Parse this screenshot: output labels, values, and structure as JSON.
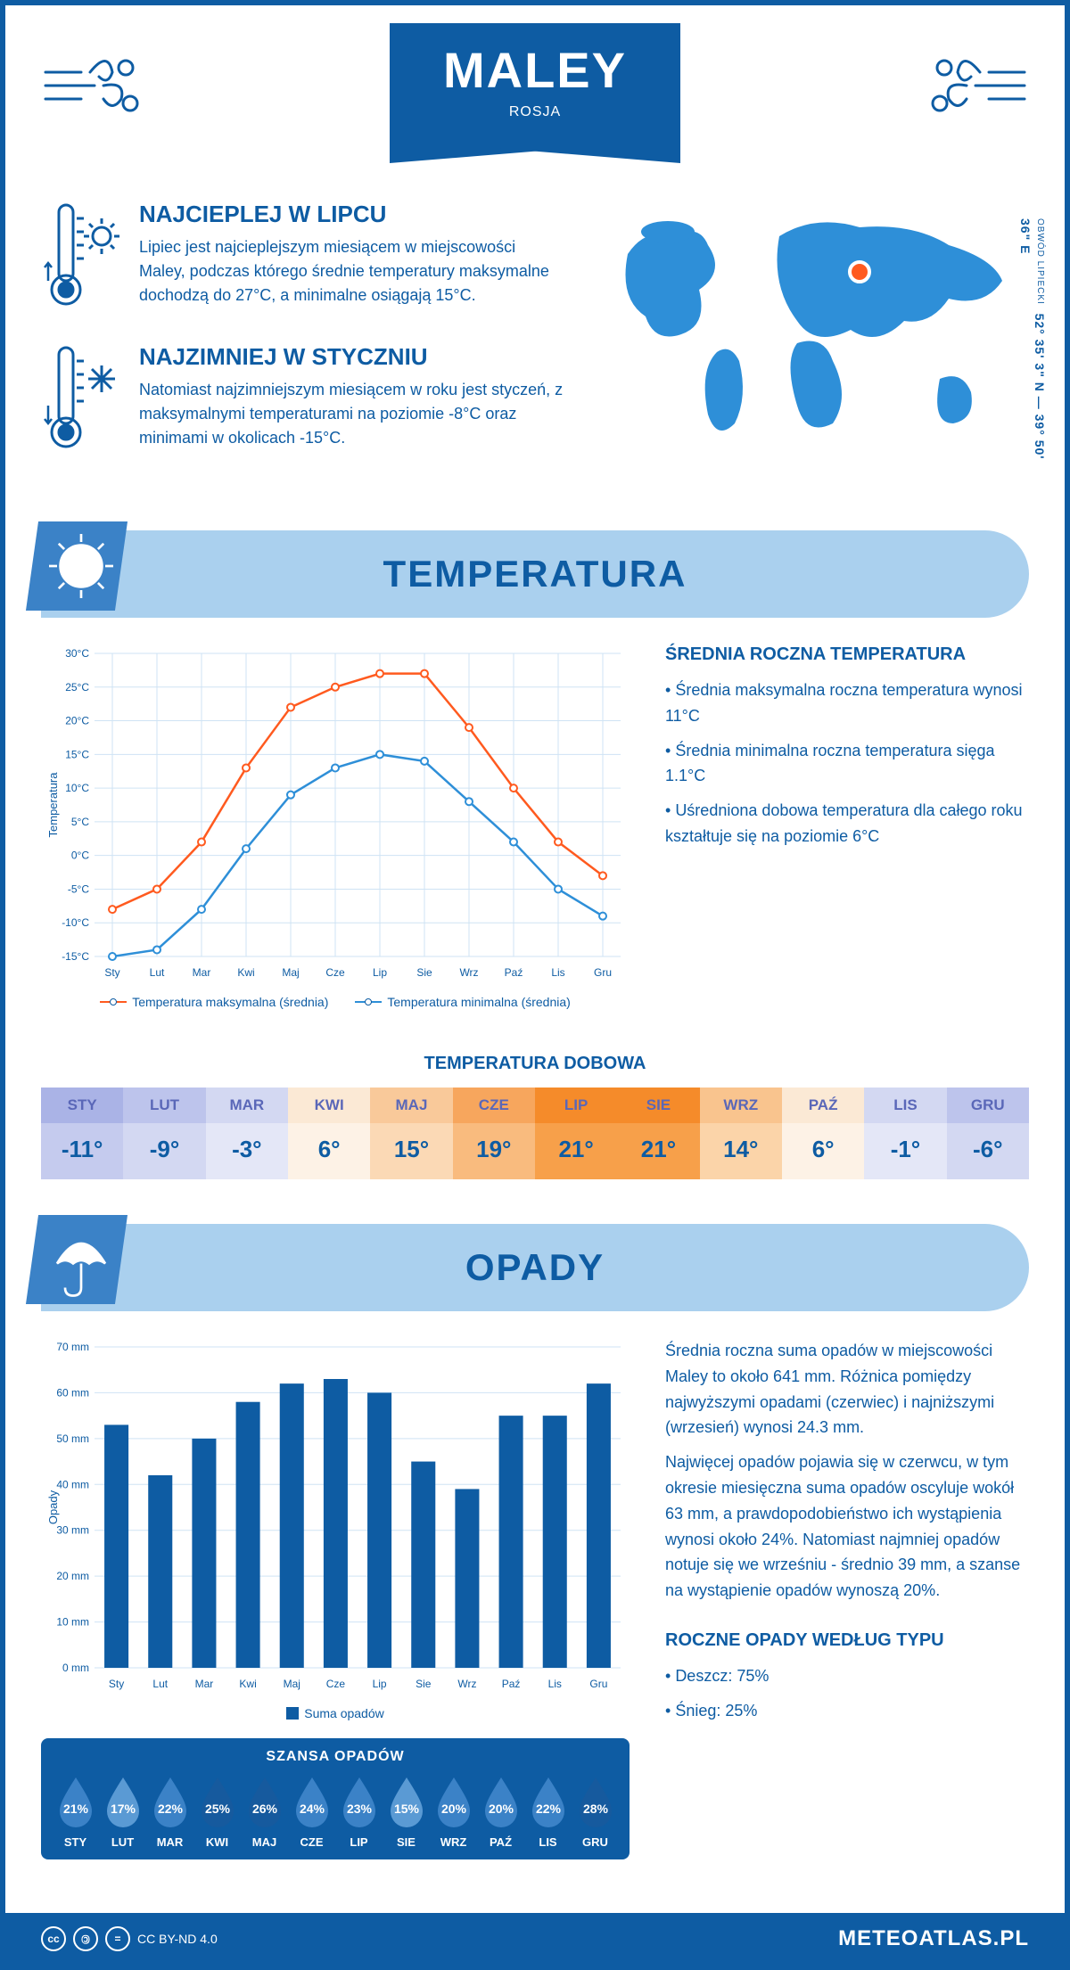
{
  "header": {
    "title": "MALEY",
    "country": "ROSJA",
    "wind_icon_color": "#0e5ca3"
  },
  "coords": {
    "lat": "52° 35' 3\" N",
    "sep": "—",
    "lon": "39° 50' 36\" E",
    "region": "OBWÓD LIPIECKI"
  },
  "intro": {
    "hot": {
      "title": "NAJCIEPLEJ W LIPCU",
      "text": "Lipiec jest najcieplejszym miesiącem w miejscowości Maley, podczas którego średnie temperatury maksymalne dochodzą do 27°C, a minimalne osiągają 15°C."
    },
    "cold": {
      "title": "NAJZIMNIEJ W STYCZNIU",
      "text": "Natomiast najzimniejszym miesiącem w roku jest styczeń, z maksymalnymi temperaturami na poziomie -8°C oraz minimami w okolicach -15°C."
    },
    "map_marker_color": "#ff5a1f",
    "map_land_color": "#2e8fd8"
  },
  "temperature": {
    "section_title": "TEMPERATURA",
    "chart": {
      "type": "line",
      "months": [
        "Sty",
        "Lut",
        "Mar",
        "Kwi",
        "Maj",
        "Cze",
        "Lip",
        "Sie",
        "Wrz",
        "Paź",
        "Lis",
        "Gru"
      ],
      "max": [
        -8,
        -5,
        2,
        13,
        22,
        25,
        27,
        27,
        19,
        10,
        2,
        -3
      ],
      "min": [
        -15,
        -14,
        -8,
        1,
        9,
        13,
        15,
        14,
        8,
        2,
        -5,
        -9
      ],
      "max_color": "#ff5a1f",
      "min_color": "#2e8fd8",
      "ylabel": "Temperatura",
      "ylim": [
        -15,
        30
      ],
      "ytick_step": 5,
      "grid_color": "#cfe3f4",
      "background": "#ffffff",
      "legend_max": "Temperatura maksymalna (średnia)",
      "legend_min": "Temperatura minimalna (średnia)",
      "y_unit": "°C"
    },
    "annual": {
      "title": "ŚREDNIA ROCZNA TEMPERATURA",
      "points": [
        "Średnia maksymalna roczna temperatura wynosi 11°C",
        "Średnia minimalna roczna temperatura sięga 1.1°C",
        "Uśredniona dobowa temperatura dla całego roku kształtuje się na poziomie 6°C"
      ]
    },
    "daily": {
      "title": "TEMPERATURA DOBOWA",
      "months": [
        "STY",
        "LUT",
        "MAR",
        "KWI",
        "MAJ",
        "CZE",
        "LIP",
        "SIE",
        "WRZ",
        "PAŹ",
        "LIS",
        "GRU"
      ],
      "values": [
        "-11°",
        "-9°",
        "-3°",
        "6°",
        "15°",
        "19°",
        "21°",
        "21°",
        "14°",
        "6°",
        "-1°",
        "-6°"
      ],
      "header_colors": [
        "#aab3e6",
        "#bdc4ec",
        "#d3d8f2",
        "#fbe9d5",
        "#f9c99a",
        "#f7a65d",
        "#f58b2a",
        "#f58b2a",
        "#f9c48e",
        "#fbe9d5",
        "#d3d8f2",
        "#bdc4ec"
      ],
      "value_colors": [
        "#c5cbee",
        "#d3d8f2",
        "#e4e7f7",
        "#fdf2e6",
        "#fbd9b5",
        "#f9bb7e",
        "#f7a04a",
        "#f7a04a",
        "#fbd4a9",
        "#fdf2e6",
        "#e4e7f7",
        "#d3d8f2"
      ],
      "text_header": "#5a67b8",
      "text_value": "#0e5ca3"
    }
  },
  "precip": {
    "section_title": "OPADY",
    "chart": {
      "type": "bar",
      "months": [
        "Sty",
        "Lut",
        "Mar",
        "Kwi",
        "Maj",
        "Cze",
        "Lip",
        "Sie",
        "Wrz",
        "Paź",
        "Lis",
        "Gru"
      ],
      "values": [
        53,
        42,
        50,
        58,
        62,
        63,
        60,
        45,
        39,
        55,
        55,
        62
      ],
      "bar_color": "#0e5ca3",
      "ylabel": "Opady",
      "ylim": [
        0,
        70
      ],
      "ytick_step": 10,
      "grid_color": "#cfe3f4",
      "legend": "Suma opadów",
      "y_unit": " mm"
    },
    "text1": "Średnia roczna suma opadów w miejscowości Maley to około 641 mm. Różnica pomiędzy najwyższymi opadami (czerwiec) i najniższymi (wrzesień) wynosi 24.3 mm.",
    "text2": "Najwięcej opadów pojawia się w czerwcu, w tym okresie miesięczna suma opadów oscyluje wokół 63 mm, a prawdopodobieństwo ich wystąpienia wynosi około 24%. Natomiast najmniej opadów notuje się we wrześniu - średnio 39 mm, a szanse na wystąpienie opadów wynoszą 20%.",
    "chance": {
      "title": "SZANSA OPADÓW",
      "months": [
        "STY",
        "LUT",
        "MAR",
        "KWI",
        "MAJ",
        "CZE",
        "LIP",
        "SIE",
        "WRZ",
        "PAŹ",
        "LIS",
        "GRU"
      ],
      "pct": [
        "21%",
        "17%",
        "22%",
        "25%",
        "26%",
        "24%",
        "23%",
        "15%",
        "20%",
        "20%",
        "22%",
        "28%"
      ],
      "colors": [
        "#3b82c7",
        "#5a9ad4",
        "#3b82c7",
        "#165a9e",
        "#165a9e",
        "#3b82c7",
        "#3b82c7",
        "#5a9ad4",
        "#3b82c7",
        "#3b82c7",
        "#3b82c7",
        "#165a9e"
      ]
    },
    "by_type": {
      "title": "ROCZNE OPADY WEDŁUG TYPU",
      "rain": "Deszcz: 75%",
      "snow": "Śnieg: 25%"
    }
  },
  "footer": {
    "license": "CC BY-ND 4.0",
    "site": "METEOATLAS.PL"
  }
}
